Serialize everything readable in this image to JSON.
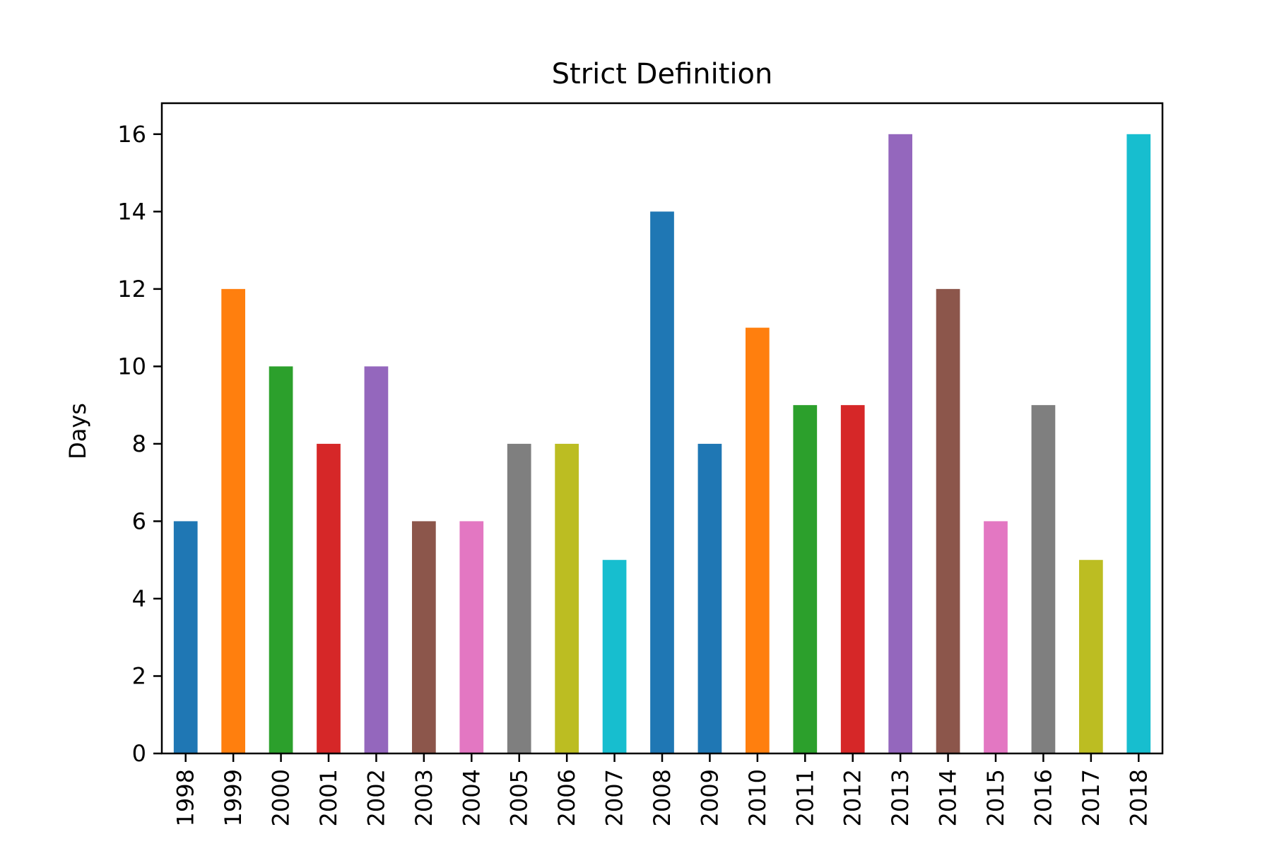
{
  "chart_data": {
    "type": "bar",
    "title": "Strict Definition",
    "xlabel": "",
    "ylabel": "Days",
    "ylim": [
      0,
      16.8
    ],
    "yticks": [
      0,
      2,
      4,
      6,
      8,
      10,
      12,
      14,
      16
    ],
    "grid": false,
    "legend": "none",
    "categories": [
      "1998",
      "1999",
      "2000",
      "2001",
      "2002",
      "2003",
      "2004",
      "2005",
      "2006",
      "2007",
      "2008",
      "2009",
      "2010",
      "2011",
      "2012",
      "2013",
      "2014",
      "2015",
      "2016",
      "2017",
      "2018"
    ],
    "values": [
      6,
      12,
      10,
      8,
      10,
      6,
      6,
      8,
      8,
      5,
      14,
      8,
      11,
      9,
      9,
      16,
      12,
      6,
      9,
      5,
      16
    ],
    "colors": [
      "#1f77b4",
      "#ff7f0e",
      "#2ca02c",
      "#d62728",
      "#9467bd",
      "#8c564b",
      "#e377c2",
      "#7f7f7f",
      "#bcbd22",
      "#17becf",
      "#1f77b4",
      "#1f77b4",
      "#ff7f0e",
      "#2ca02c",
      "#d62728",
      "#9467bd",
      "#8c564b",
      "#e377c2",
      "#7f7f7f",
      "#bcbd22",
      "#17becf"
    ]
  }
}
